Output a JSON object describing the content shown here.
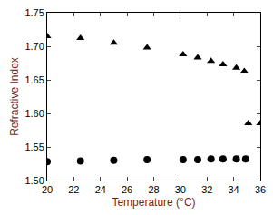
{
  "chart_data": {
    "type": "scatter",
    "x_label": "Temperature (°C)",
    "y_label": "Refractive Index",
    "series": [
      {
        "color": "#000000",
        "marker": "triangle",
        "x": [
          20,
          22.5,
          25,
          27.5,
          30.2,
          31.3,
          32.3,
          33.2,
          34.2,
          34.8,
          35.1,
          36
        ],
        "values": [
          1.715,
          1.712,
          1.705,
          1.698,
          1.688,
          1.683,
          1.678,
          1.673,
          1.668,
          1.663,
          1.585,
          1.585
        ]
      },
      {
        "color": "#000000",
        "marker": "circle",
        "x": [
          20,
          22.5,
          25,
          27.5,
          30.2,
          31.3,
          32.3,
          33.2,
          34.2,
          34.9
        ],
        "values": [
          1.528,
          1.529,
          1.53,
          1.531,
          1.531,
          1.531,
          1.532,
          1.532,
          1.532,
          1.532
        ]
      }
    ],
    "xlim": [
      20,
      36
    ],
    "xticks": [
      20,
      22,
      24,
      26,
      28,
      30,
      32,
      34,
      36
    ],
    "ylim": [
      1.5,
      1.75
    ],
    "yticks": [
      {
        "value": 1.5,
        "label": "1.50"
      },
      {
        "value": 1.55,
        "label": "1.55"
      },
      {
        "value": 1.6,
        "label": "1.60"
      },
      {
        "value": 1.65,
        "label": "1.65"
      },
      {
        "value": 1.7,
        "label": "1.70"
      },
      {
        "value": 1.75,
        "label": "1.75"
      }
    ],
    "grid": false
  }
}
